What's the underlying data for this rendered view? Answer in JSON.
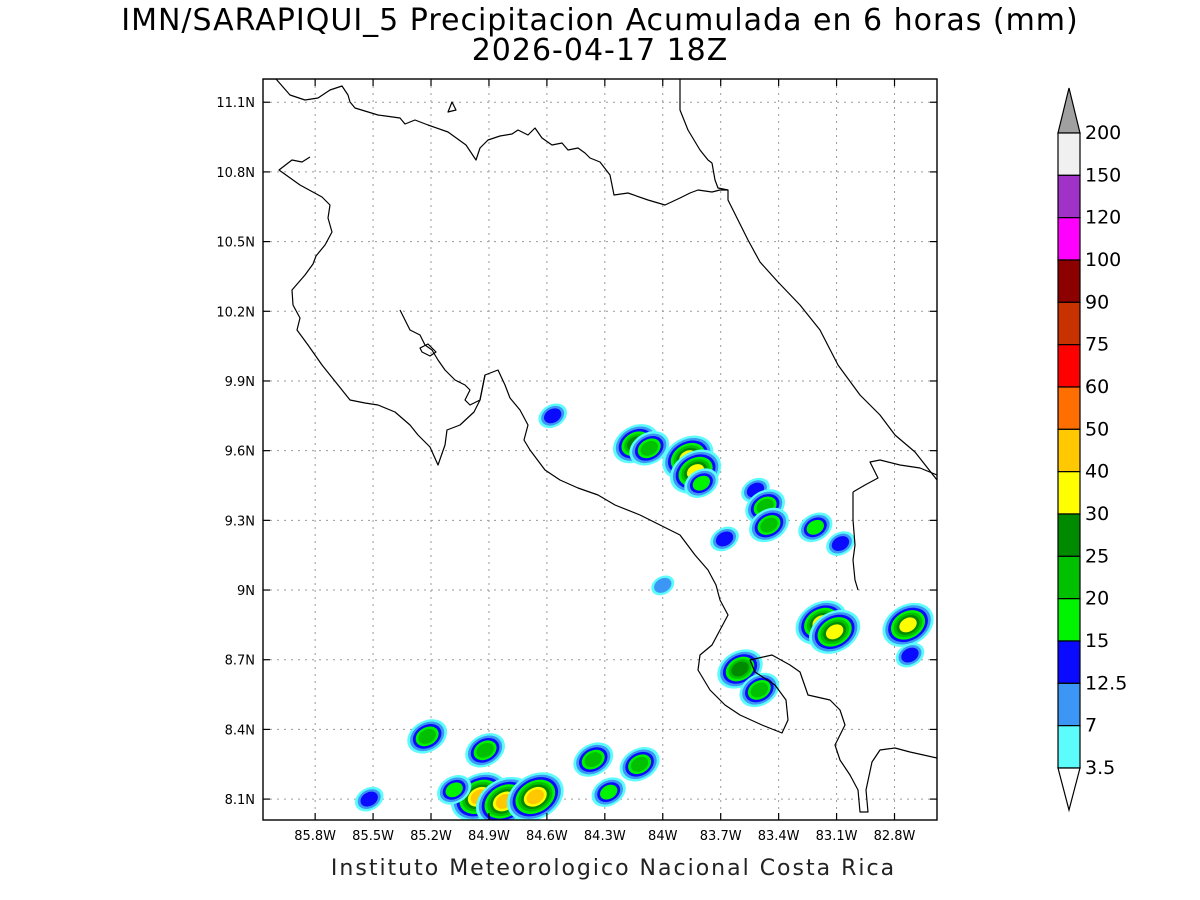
{
  "header": {
    "title": "IMN/SARAPIQUI_5 Precipitacion Acumulada en 6 horas (mm)",
    "subtitle": "2026-04-17 18Z"
  },
  "footer": "Instituto Meteorologico Nacional Costa Rica",
  "chart_data": {
    "type": "heatmap",
    "variable": "Precipitacion Acumulada en 6 horas (mm)",
    "grid": true,
    "x_ticks": [
      "85.8W",
      "85.5W",
      "85.2W",
      "84.9W",
      "84.6W",
      "84.3W",
      "84W",
      "83.7W",
      "83.4W",
      "83.1W",
      "82.8W"
    ],
    "y_ticks": [
      "11.1N",
      "10.8N",
      "10.5N",
      "10.2N",
      "9.9N",
      "9.6N",
      "9.3N",
      "9N",
      "8.7N",
      "8.4N",
      "8.1N"
    ],
    "xlim_lon": [
      -86.07,
      -82.58
    ],
    "ylim_lat": [
      8.01,
      11.2
    ],
    "colorbar": {
      "levels": [
        "3.5",
        "7",
        "12.5",
        "15",
        "20",
        "25",
        "30",
        "40",
        "50",
        "60",
        "75",
        "90",
        "100",
        "120",
        "150",
        "200"
      ],
      "colors": [
        "#5cfcfc",
        "#3c96f5",
        "#0a0aff",
        "#00f400",
        "#00c000",
        "#008a00",
        "#ffff00",
        "#ffc800",
        "#ff6e00",
        "#ff0000",
        "#c83200",
        "#8c0000",
        "#ff00ff",
        "#a032c8",
        "#f0f0f0",
        "#a0a0a0"
      ]
    },
    "cells": [
      {
        "lon": -84.57,
        "lat": 9.75,
        "max_level": "12.5"
      },
      {
        "lon": -84.14,
        "lat": 9.63,
        "max_level": "25"
      },
      {
        "lon": -84.07,
        "lat": 9.61,
        "max_level": "20"
      },
      {
        "lon": -83.87,
        "lat": 9.57,
        "max_level": "30"
      },
      {
        "lon": -83.83,
        "lat": 9.51,
        "max_level": "30"
      },
      {
        "lon": -83.8,
        "lat": 9.46,
        "max_level": "15"
      },
      {
        "lon": -83.52,
        "lat": 9.43,
        "max_level": "12.5"
      },
      {
        "lon": -83.47,
        "lat": 9.36,
        "max_level": "20"
      },
      {
        "lon": -83.45,
        "lat": 9.28,
        "max_level": "20"
      },
      {
        "lon": -83.21,
        "lat": 9.27,
        "max_level": "15"
      },
      {
        "lon": -83.08,
        "lat": 9.2,
        "max_level": "12.5"
      },
      {
        "lon": -83.68,
        "lat": 9.22,
        "max_level": "12.5"
      },
      {
        "lon": -84.0,
        "lat": 9.02,
        "max_level": "7"
      },
      {
        "lon": -83.18,
        "lat": 8.86,
        "max_level": "30"
      },
      {
        "lon": -83.11,
        "lat": 8.82,
        "max_level": "30"
      },
      {
        "lon": -82.73,
        "lat": 8.85,
        "max_level": "30"
      },
      {
        "lon": -82.72,
        "lat": 8.72,
        "max_level": "12.5"
      },
      {
        "lon": -83.6,
        "lat": 8.66,
        "max_level": "25"
      },
      {
        "lon": -83.5,
        "lat": 8.57,
        "max_level": "20"
      },
      {
        "lon": -84.92,
        "lat": 8.31,
        "max_level": "20"
      },
      {
        "lon": -84.95,
        "lat": 8.11,
        "max_level": "40"
      },
      {
        "lon": -84.82,
        "lat": 8.09,
        "max_level": "40"
      },
      {
        "lon": -84.66,
        "lat": 8.11,
        "max_level": "40"
      },
      {
        "lon": -84.36,
        "lat": 8.27,
        "max_level": "20"
      },
      {
        "lon": -84.28,
        "lat": 8.13,
        "max_level": "15"
      },
      {
        "lon": -84.12,
        "lat": 8.25,
        "max_level": "20"
      },
      {
        "lon": -85.22,
        "lat": 8.37,
        "max_level": "20"
      },
      {
        "lon": -85.08,
        "lat": 8.14,
        "max_level": "15"
      },
      {
        "lon": -85.52,
        "lat": 8.1,
        "max_level": "12.5"
      }
    ]
  },
  "icons": {
    "colorbar_top": "up-triangle",
    "colorbar_bottom": "down-triangle"
  }
}
